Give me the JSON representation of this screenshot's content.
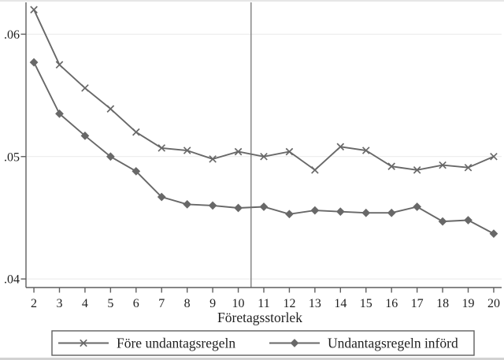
{
  "chart_data": {
    "type": "line",
    "title": "",
    "xlabel": "Företagsstorlek",
    "ylabel": "",
    "x": [
      2,
      3,
      4,
      5,
      6,
      7,
      8,
      9,
      10,
      11,
      12,
      13,
      14,
      15,
      16,
      17,
      18,
      19,
      20
    ],
    "series": [
      {
        "name": "Före undantagsregeln",
        "marker": "x",
        "values": [
          0.062,
          0.0575,
          0.0556,
          0.0539,
          0.052,
          0.0507,
          0.0505,
          0.0498,
          0.0504,
          0.05,
          0.0504,
          0.0489,
          0.0508,
          0.0505,
          0.0492,
          0.0489,
          0.0493,
          0.0491,
          0.05
        ]
      },
      {
        "name": "Undantagsregeln införd",
        "marker": "diamond",
        "values": [
          0.0577,
          0.0535,
          0.0517,
          0.05,
          0.0488,
          0.0467,
          0.0461,
          0.046,
          0.0458,
          0.0459,
          0.0453,
          0.0456,
          0.0455,
          0.0454,
          0.0454,
          0.0459,
          0.0447,
          0.0448,
          0.0437
        ]
      }
    ],
    "x_ticks": [
      2,
      3,
      4,
      5,
      6,
      7,
      8,
      9,
      10,
      11,
      12,
      13,
      14,
      15,
      16,
      17,
      18,
      19,
      20
    ],
    "y_ticks": [
      0.04,
      0.05,
      0.06
    ],
    "y_tick_labels": [
      ".04",
      ".05",
      ".06"
    ],
    "xlim": [
      1.69,
      20.31
    ],
    "ylim": [
      0.0393,
      0.0626
    ],
    "vline_x": 10.5,
    "grid": "horizontal-only",
    "legend_position": "bottom-boxed",
    "colors": {
      "series": "#686868",
      "axis": "#5f5f5f",
      "gridline": "#e9e9e9",
      "refline": "#8d8d8d",
      "text": "#1f1f1f",
      "background": "#ffffff"
    }
  }
}
